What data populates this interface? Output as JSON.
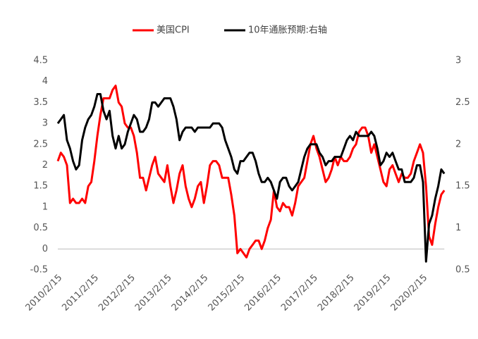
{
  "chart_data": {
    "type": "line",
    "legend": "top",
    "categories": [
      "2010/2/15",
      null,
      null,
      null,
      null,
      null,
      null,
      null,
      null,
      null,
      null,
      null,
      "2011/2/15",
      null,
      null,
      null,
      null,
      null,
      null,
      null,
      null,
      null,
      null,
      null,
      "2012/2/15",
      null,
      null,
      null,
      null,
      null,
      null,
      null,
      null,
      null,
      null,
      null,
      "2013/2/15",
      null,
      null,
      null,
      null,
      null,
      null,
      null,
      null,
      null,
      null,
      null,
      "2014/2/15",
      null,
      null,
      null,
      null,
      null,
      null,
      null,
      null,
      null,
      null,
      null,
      "2015/2/15",
      null,
      null,
      null,
      null,
      null,
      null,
      null,
      null,
      null,
      null,
      null,
      "2016/2/15",
      null,
      null,
      null,
      null,
      null,
      null,
      null,
      null,
      null,
      null,
      null,
      "2017/2/15",
      null,
      null,
      null,
      null,
      null,
      null,
      null,
      null,
      null,
      null,
      null,
      "2018/2/15",
      null,
      null,
      null,
      null,
      null,
      null,
      null,
      null,
      null,
      null,
      null,
      "2019/2/15",
      null,
      null,
      null,
      null,
      null,
      null,
      null,
      null,
      null,
      null,
      null,
      "2020/2/15",
      null,
      null,
      null,
      null,
      null,
      null,
      null
    ],
    "series": [
      {
        "name": "美国CPI",
        "color": "#ff0000",
        "values": [
          2.1,
          2.3,
          2.2,
          2.0,
          1.1,
          1.2,
          1.1,
          1.1,
          1.2,
          1.1,
          1.5,
          1.6,
          2.1,
          2.7,
          3.2,
          3.6,
          3.6,
          3.6,
          3.8,
          3.9,
          3.5,
          3.4,
          3.0,
          2.9,
          2.9,
          2.7,
          2.3,
          1.7,
          1.7,
          1.4,
          1.7,
          2.0,
          2.2,
          1.8,
          1.7,
          1.6,
          2.0,
          1.5,
          1.1,
          1.4,
          1.8,
          2.0,
          1.5,
          1.2,
          1.0,
          1.2,
          1.5,
          1.6,
          1.1,
          1.5,
          2.0,
          2.1,
          2.1,
          2.0,
          1.7,
          1.7,
          1.7,
          1.3,
          0.8,
          -0.1,
          0.0,
          -0.1,
          -0.2,
          0.0,
          0.1,
          0.2,
          0.2,
          0.0,
          0.2,
          0.5,
          0.7,
          1.4,
          1.0,
          0.9,
          1.1,
          1.0,
          1.0,
          0.8,
          1.1,
          1.5,
          1.6,
          1.7,
          2.1,
          2.5,
          2.7,
          2.4,
          2.2,
          1.9,
          1.6,
          1.7,
          1.9,
          2.2,
          2.0,
          2.2,
          2.1,
          2.1,
          2.2,
          2.4,
          2.5,
          2.8,
          2.9,
          2.9,
          2.7,
          2.3,
          2.5,
          2.2,
          1.9,
          1.6,
          1.5,
          1.9,
          2.0,
          1.8,
          1.6,
          1.8,
          1.7,
          1.7,
          1.8,
          2.1,
          2.3,
          2.5,
          2.3,
          1.5,
          0.3,
          0.1,
          0.6,
          1.0,
          1.3,
          1.4
        ]
      },
      {
        "name": "10年通胀预期:右轴",
        "color": "#000000",
        "axis": "y2",
        "values": [
          2.25,
          2.3,
          2.35,
          2.05,
          1.95,
          1.8,
          1.7,
          1.75,
          2.05,
          2.2,
          2.3,
          2.35,
          2.45,
          2.6,
          2.6,
          2.4,
          2.3,
          2.4,
          2.1,
          1.95,
          2.1,
          1.95,
          2.0,
          2.15,
          2.25,
          2.35,
          2.3,
          2.15,
          2.15,
          2.2,
          2.3,
          2.5,
          2.5,
          2.45,
          2.5,
          2.55,
          2.55,
          2.55,
          2.45,
          2.3,
          2.05,
          2.15,
          2.2,
          2.2,
          2.2,
          2.15,
          2.2,
          2.2,
          2.2,
          2.2,
          2.2,
          2.25,
          2.25,
          2.25,
          2.2,
          2.05,
          1.95,
          1.85,
          1.7,
          1.65,
          1.8,
          1.8,
          1.85,
          1.9,
          1.9,
          1.8,
          1.65,
          1.55,
          1.55,
          1.6,
          1.55,
          1.45,
          1.35,
          1.55,
          1.6,
          1.6,
          1.5,
          1.45,
          1.5,
          1.55,
          1.7,
          1.85,
          1.95,
          2.0,
          2.0,
          2.0,
          1.9,
          1.85,
          1.75,
          1.8,
          1.8,
          1.85,
          1.85,
          1.85,
          1.95,
          2.05,
          2.1,
          2.05,
          2.15,
          2.1,
          2.1,
          2.1,
          2.1,
          2.15,
          2.1,
          1.95,
          1.75,
          1.8,
          1.9,
          1.85,
          1.9,
          1.8,
          1.7,
          1.7,
          1.55,
          1.55,
          1.55,
          1.6,
          1.75,
          1.75,
          1.55,
          0.6,
          1.05,
          1.15,
          1.35,
          1.5,
          1.7,
          1.65
        ]
      }
    ],
    "ylim": [
      -0.5,
      4.5
    ],
    "yticks": [
      -0.5,
      0,
      0.5,
      1,
      1.5,
      2,
      2.5,
      3,
      3.5,
      4,
      4.5
    ],
    "y2lim": [
      0.5,
      3
    ],
    "y2ticks": [
      0.5,
      1,
      1.5,
      2,
      2.5,
      3
    ]
  }
}
